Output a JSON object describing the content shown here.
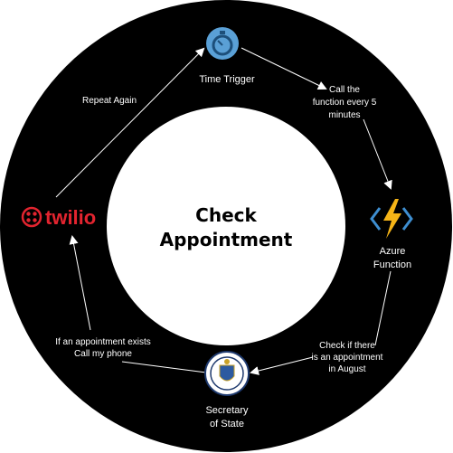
{
  "center": {
    "line1": "Check",
    "line2": "Appointment"
  },
  "nodes": {
    "time_trigger": {
      "label": "Time Trigger",
      "icon": "stopwatch-icon"
    },
    "azure_function": {
      "line1": "Azure",
      "line2": "Function",
      "icon": "lightning-bolt-icon"
    },
    "secretary_of_state": {
      "line1": "Secretary",
      "line2": "of State",
      "icon": "state-seal-icon"
    },
    "twilio": {
      "wordmark": "twilio",
      "icon": "twilio-logo-icon"
    }
  },
  "edges": {
    "trigger_to_azure": {
      "line1": "Call the",
      "line2": "function every 5",
      "line3": "minutes"
    },
    "azure_to_sos": {
      "line1": "Check if there",
      "line2": "is an appointment",
      "line3": "in August"
    },
    "sos_to_twilio": {
      "line1": "If an appointment exists",
      "line2": "Call my phone"
    },
    "twilio_to_trigger": {
      "line1": "Repeat Again"
    }
  },
  "colors": {
    "ring": "#000000",
    "background": "#ffffff",
    "text": "#ffffff",
    "twilio_red": "#e2242f",
    "azure_yellow": "#f5b417",
    "azure_blue": "#3e8ed0",
    "trigger_blue": "#5aa0d6"
  }
}
